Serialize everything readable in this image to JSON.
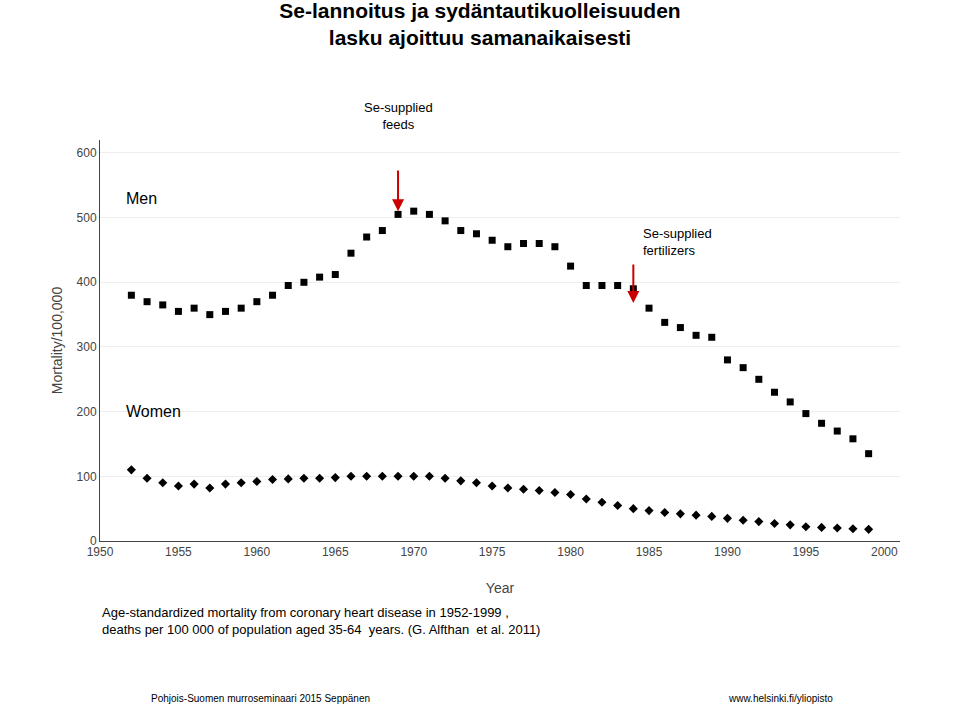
{
  "chart_data": {
    "type": "scatter",
    "title": [
      "Se-lannoitus ja sydäntautikuolleisuuden",
      "lasku ajoittuu samanaikaisesti"
    ],
    "xlabel": "Year",
    "ylabel": "Mortality/100,000",
    "caption": [
      "Age-standardized mortality from coronary heart disease in 1952-1999 ,",
      "deaths per 100 000 of population aged 35-64  years. (G. Alfthan  et al. 2011)"
    ],
    "footer": [
      "Pohjois-Suomen murroseminaari 2015 Seppänen",
      "www.helsinki.fi/yliopisto"
    ],
    "xlim": [
      1950,
      2001
    ],
    "ylim": [
      0,
      620
    ],
    "xticks": [
      1950,
      1955,
      1960,
      1965,
      1970,
      1975,
      1980,
      1985,
      1990,
      1995,
      2000
    ],
    "yticks": [
      0,
      100,
      200,
      300,
      400,
      500,
      600
    ],
    "grid": true,
    "series": [
      {
        "name": "Men",
        "color": "#000000",
        "marker": "square",
        "x": [
          1952,
          1953,
          1954,
          1955,
          1956,
          1957,
          1958,
          1959,
          1960,
          1961,
          1962,
          1963,
          1964,
          1965,
          1966,
          1967,
          1968,
          1969,
          1970,
          1971,
          1972,
          1973,
          1974,
          1975,
          1976,
          1977,
          1978,
          1979,
          1980,
          1981,
          1982,
          1983,
          1984,
          1985,
          1986,
          1987,
          1988,
          1989,
          1990,
          1991,
          1992,
          1993,
          1994,
          1995,
          1996,
          1997,
          1998,
          1999
        ],
        "values": [
          380,
          370,
          365,
          355,
          360,
          350,
          355,
          360,
          370,
          380,
          395,
          400,
          408,
          412,
          445,
          470,
          480,
          505,
          510,
          505,
          495,
          480,
          475,
          465,
          455,
          460,
          460,
          455,
          425,
          395,
          395,
          395,
          390,
          360,
          338,
          330,
          318,
          315,
          280,
          268,
          250,
          230,
          215,
          197,
          182,
          170,
          158,
          135
        ]
      },
      {
        "name": "Women",
        "color": "#000000",
        "marker": "diamond",
        "x": [
          1952,
          1953,
          1954,
          1955,
          1956,
          1957,
          1958,
          1959,
          1960,
          1961,
          1962,
          1963,
          1964,
          1965,
          1966,
          1967,
          1968,
          1969,
          1970,
          1971,
          1972,
          1973,
          1974,
          1975,
          1976,
          1977,
          1978,
          1979,
          1980,
          1981,
          1982,
          1983,
          1984,
          1985,
          1986,
          1987,
          1988,
          1989,
          1990,
          1991,
          1992,
          1993,
          1994,
          1995,
          1996,
          1997,
          1998,
          1999
        ],
        "values": [
          110,
          97,
          90,
          85,
          88,
          82,
          88,
          90,
          92,
          95,
          96,
          97,
          97,
          98,
          100,
          100,
          100,
          100,
          100,
          100,
          97,
          93,
          90,
          85,
          82,
          80,
          78,
          75,
          72,
          65,
          60,
          55,
          50,
          47,
          44,
          42,
          40,
          38,
          35,
          32,
          30,
          27,
          25,
          22,
          21,
          20,
          19,
          18
        ]
      }
    ],
    "annotations": [
      {
        "text": "Men",
        "x": 1951.5,
        "y": 530
      },
      {
        "text": "Women",
        "x": 1951.5,
        "y": 200
      },
      {
        "text": "Se-supplied\nfeeds",
        "x": 1969,
        "above_plot": true
      },
      {
        "text": "Se-supplied\nfertilizers",
        "x": 1984.5,
        "y": 490
      },
      {
        "arrow": {
          "x": 1969,
          "from": 575,
          "to": 510
        },
        "color": "#cc0000"
      },
      {
        "arrow": {
          "x": 1984,
          "from": 430,
          "to": 368
        },
        "color": "#cc0000"
      }
    ]
  }
}
